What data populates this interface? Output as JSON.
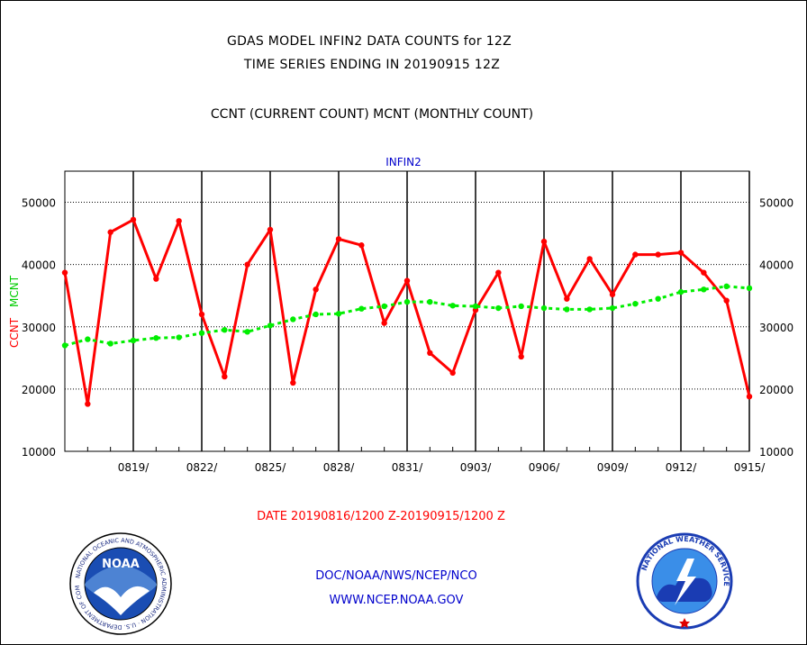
{
  "header": {
    "title_line1": "GDAS MODEL INFIN2 DATA COUNTS for 12Z",
    "title_line2": "TIME SERIES ENDING IN 20190915 12Z",
    "subtitle": "CCNT (CURRENT COUNT) MCNT (MONTHLY COUNT)"
  },
  "footer": {
    "date_range": "DATE 20190816/1200 Z-20190915/1200 Z",
    "org": "DOC/NOAA/NWS/NCEP/NCO",
    "url": "WWW.NCEP.NOAA.GOV",
    "noaa_logo_text": "NOAA",
    "noaa_ring_text": "NATIONAL OCEANIC AND ATMOSPHERIC ADMINISTRATION · U.S. DEPARTMENT OF COMMERCE",
    "nws_ring_text": "NATIONAL WEATHER SERVICE"
  },
  "colors": {
    "ccnt": "#ff0000",
    "mcnt": "#00ee00",
    "axis": "#000000",
    "title_panel": "#0000cc"
  },
  "chart_data": {
    "type": "line",
    "title": "INFIN2",
    "ylabel_left": [
      "CCNT",
      "MCNT"
    ],
    "ylim": [
      10000,
      55000
    ],
    "yticks": [
      10000,
      20000,
      30000,
      40000,
      50000
    ],
    "ytick_labels": [
      "10000",
      "20000",
      "30000",
      "40000",
      "50000"
    ],
    "x_count": 31,
    "x_ticks": [
      {
        "index": 3,
        "label": "0819/"
      },
      {
        "index": 6,
        "label": "0822/"
      },
      {
        "index": 9,
        "label": "0825/"
      },
      {
        "index": 12,
        "label": "0828/"
      },
      {
        "index": 15,
        "label": "0831/"
      },
      {
        "index": 18,
        "label": "0903/"
      },
      {
        "index": 21,
        "label": "0906/"
      },
      {
        "index": 24,
        "label": "0909/"
      },
      {
        "index": 27,
        "label": "0912/"
      },
      {
        "index": 30,
        "label": "0915/"
      }
    ],
    "series": [
      {
        "name": "CCNT",
        "values": [
          38700,
          17600,
          45200,
          47200,
          37700,
          47000,
          32000,
          22000,
          40000,
          45600,
          21000,
          36000,
          44100,
          43100,
          30600,
          37400,
          25800,
          22600,
          32700,
          38700,
          25200,
          43700,
          34500,
          40900,
          35200,
          41600,
          41600,
          41900,
          38700,
          34200,
          18800
        ]
      },
      {
        "name": "MCNT",
        "values": [
          27000,
          28000,
          27300,
          27800,
          28200,
          28300,
          29000,
          29500,
          29200,
          30200,
          31200,
          32000,
          32100,
          32900,
          33300,
          34000,
          34000,
          33400,
          33300,
          33000,
          33300,
          33000,
          32800,
          32800,
          33000,
          33700,
          34500,
          35600,
          36000,
          36500,
          36200
        ]
      }
    ]
  }
}
